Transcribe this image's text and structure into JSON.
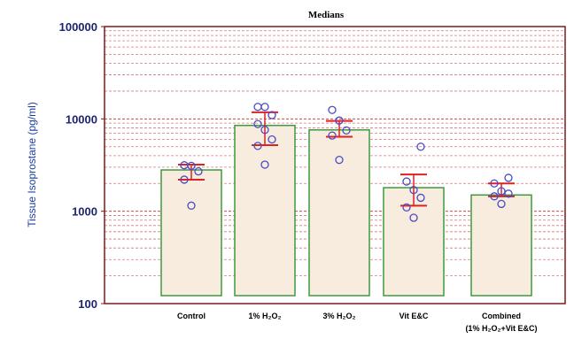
{
  "chart_data": {
    "type": "bar",
    "title": "Medians",
    "ylabel": "Tissue Isoprostane (pg/ml)",
    "xlabel": "",
    "yscale": "log",
    "ylim": [
      100,
      100000
    ],
    "yticks": [
      {
        "value": 100,
        "label": "100"
      },
      {
        "value": 1000,
        "label": "1000"
      },
      {
        "value": 10000,
        "label": "10000"
      },
      {
        "value": 100000,
        "label": "100000"
      }
    ],
    "grid": "horizontal dashed minor lines",
    "categories": [
      {
        "line1": "Control",
        "line2": ""
      },
      {
        "line1": "1% H₂O₂",
        "line2": ""
      },
      {
        "line1": "3% H₂O₂",
        "line2": ""
      },
      {
        "line1": "Vit E&C",
        "line2": ""
      },
      {
        "line1": "Combined",
        "line2": "(1% H₂O₂+Vit E&C)"
      }
    ],
    "values": [
      2800,
      8500,
      7600,
      1800,
      1500
    ],
    "error_ranges": [
      {
        "low": 2200,
        "high": 3200
      },
      {
        "low": 5200,
        "high": 11800
      },
      {
        "low": 6400,
        "high": 9500
      },
      {
        "low": 1150,
        "high": 2500
      },
      {
        "low": 1450,
        "high": 2000
      }
    ],
    "points": [
      [
        1150,
        2200,
        2700,
        3100,
        3150
      ],
      [
        3200,
        5100,
        6000,
        7600,
        8800,
        11000,
        13500,
        13500
      ],
      [
        3600,
        6600,
        7500,
        9600,
        12500
      ],
      [
        850,
        1100,
        1400,
        1700,
        2100,
        5000
      ],
      [
        1200,
        1450,
        1550,
        1650,
        2000,
        2300
      ]
    ],
    "colors": {
      "bar_fill": "#f7ecdd",
      "bar_stroke": "#3d9a3d",
      "frame": "#7a1a1a",
      "grid": "#c84040",
      "error": "#dd2222",
      "point": "#4a4ac8"
    }
  }
}
